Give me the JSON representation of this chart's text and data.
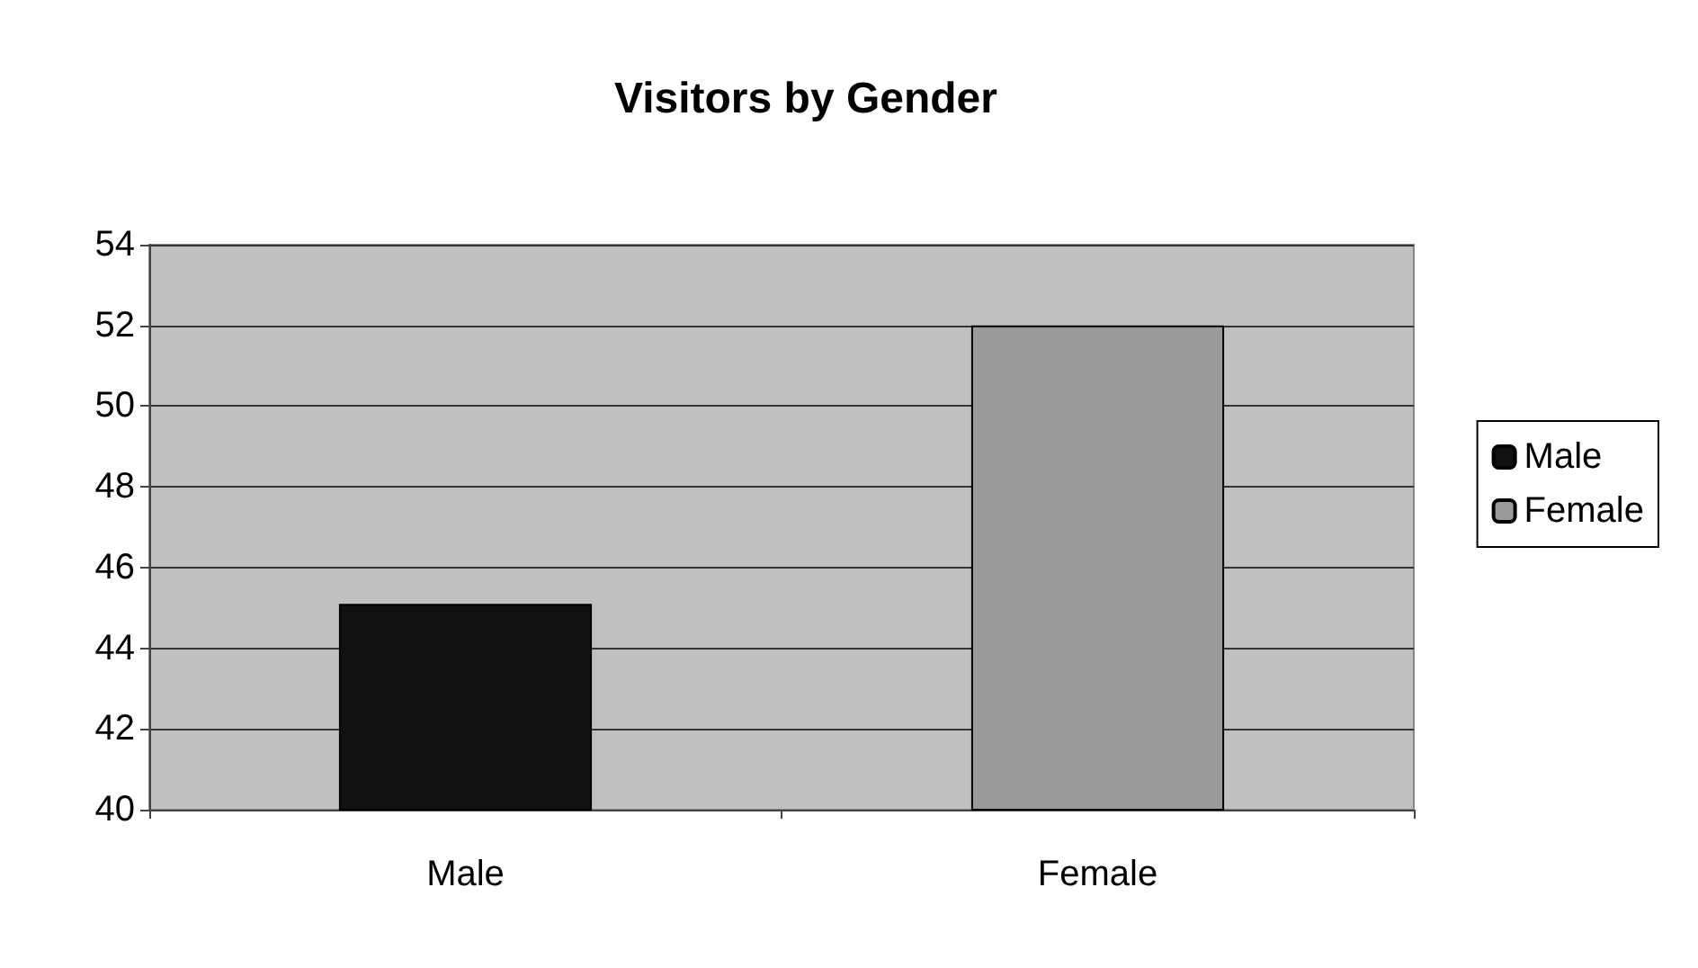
{
  "chart_data": {
    "type": "bar",
    "title": "Visitors by Gender",
    "categories": [
      "Male",
      "Female"
    ],
    "series": [
      {
        "name": "Male",
        "color": "#111111",
        "values": [
          45.1,
          null
        ]
      },
      {
        "name": "Female",
        "color": "#9a9a9a",
        "values": [
          null,
          52
        ]
      }
    ],
    "ylim": [
      40,
      54
    ],
    "yticks": [
      40,
      42,
      44,
      46,
      48,
      50,
      52,
      54
    ],
    "grid": "y",
    "legend": "right"
  }
}
